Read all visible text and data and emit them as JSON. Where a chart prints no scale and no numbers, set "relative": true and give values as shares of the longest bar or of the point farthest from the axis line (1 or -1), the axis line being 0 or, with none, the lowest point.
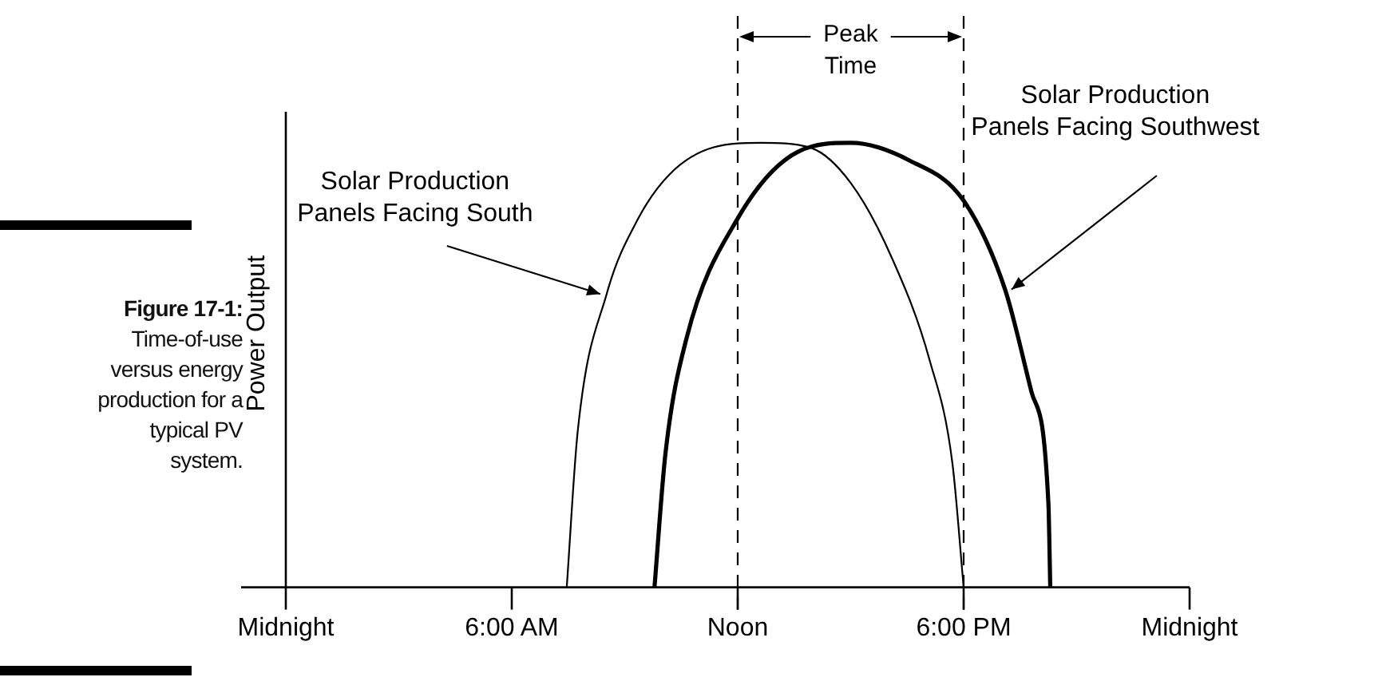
{
  "chart_data": {
    "type": "line",
    "relative": true,
    "ylabel": "Power Output",
    "xlim": [
      0,
      24
    ],
    "xticks": [
      {
        "value": 0,
        "label": "Midnight"
      },
      {
        "value": 6,
        "label": "6:00 AM"
      },
      {
        "value": 12,
        "label": "Noon"
      },
      {
        "value": 18,
        "label": "6:00 PM"
      },
      {
        "value": 24,
        "label": "Midnight"
      }
    ],
    "series": [
      {
        "name": "Solar Production\nPanels Facing South",
        "color": "#000000",
        "x": [
          7.46,
          7.75,
          8.52,
          9.36,
          10.2,
          11.36,
          12.63,
          13.9,
          15.0,
          16.1,
          17.1,
          17.7,
          18.0
        ],
        "values": [
          0,
          0.35,
          0.66,
          0.83,
          0.93,
          0.99,
          1.0,
          0.99,
          0.91,
          0.74,
          0.51,
          0.28,
          0
        ]
      },
      {
        "name": "Solar Production\nPanels Facing Southwest",
        "color": "#000000",
        "x": [
          9.79,
          10.08,
          10.64,
          12.0,
          13.6,
          15.0,
          16.57,
          18.0,
          19.1,
          19.8,
          20.25,
          20.3
        ],
        "values": [
          0,
          0.3,
          0.56,
          0.83,
          0.98,
          1.0,
          0.96,
          0.87,
          0.67,
          0.44,
          0.19,
          0
        ]
      }
    ],
    "ref_lines": [
      {
        "axis": "x",
        "value": 12,
        "line_style": "dashed"
      },
      {
        "axis": "x",
        "value": 18,
        "line_style": "dashed"
      }
    ],
    "marker": "none",
    "grid": false,
    "legend": false,
    "annotations": [
      "Peak Time",
      "Figure 17-1: Time-of-use versus energy production for a typical PV system."
    ]
  }
}
